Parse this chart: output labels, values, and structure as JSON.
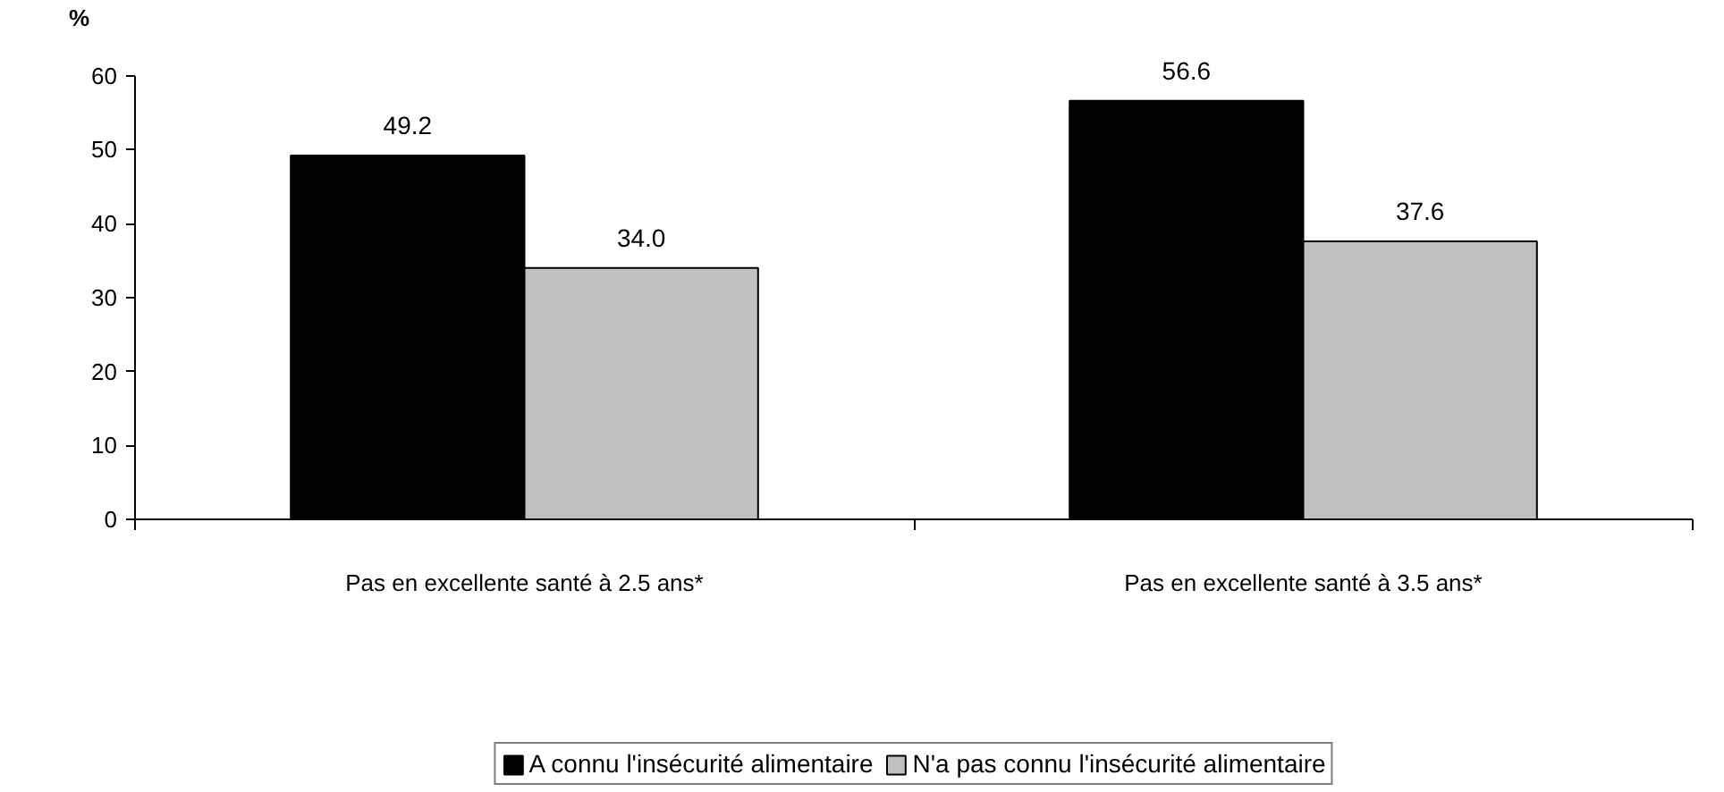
{
  "chart_data": {
    "type": "bar",
    "ylabel": "%",
    "categories": [
      "Pas en excellente santé à 2.5 ans*",
      "Pas en excellente santé à 3.5 ans*"
    ],
    "series": [
      {
        "name": "A connu l'insécurité alimentaire",
        "color": "#000000",
        "values": [
          49.2,
          56.6
        ],
        "value_labels": [
          "49.2",
          "56.6"
        ]
      },
      {
        "name": "N'a pas connu l'insécurité alimentaire",
        "color": "#c0c0c0",
        "values": [
          34.0,
          37.6
        ],
        "value_labels": [
          "34.0",
          "37.6"
        ]
      }
    ],
    "ylim": [
      0,
      60
    ],
    "yticks": [
      0,
      10,
      20,
      30,
      40,
      50,
      60
    ],
    "grid": false,
    "legend": "bottom",
    "data_labels": true
  }
}
